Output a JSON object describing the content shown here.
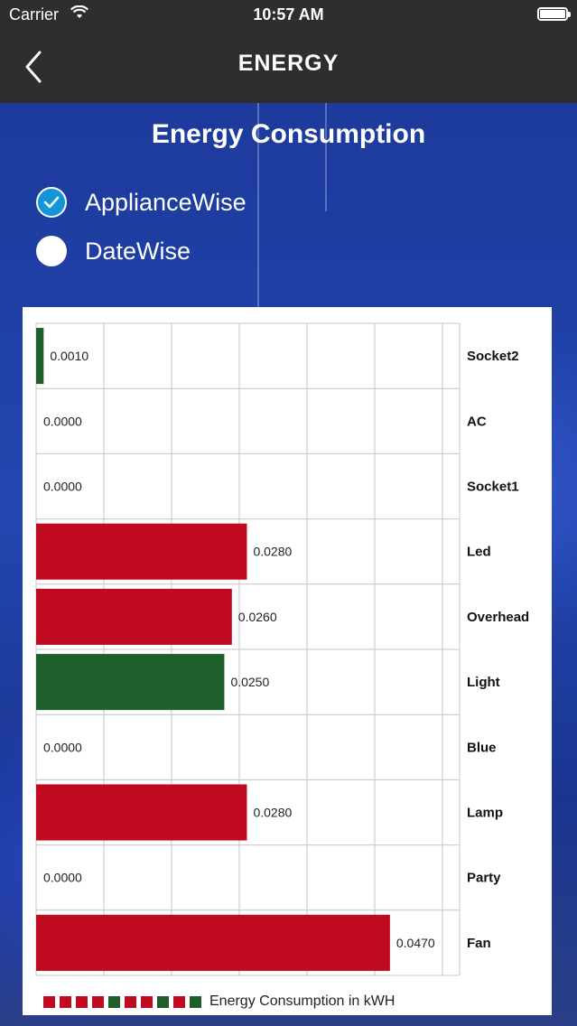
{
  "status_bar": {
    "carrier": "Carrier",
    "time": "10:57 AM"
  },
  "nav": {
    "title": "ENERGY",
    "back_icon": "chevron-left-icon"
  },
  "page_title": "Energy Consumption",
  "options": [
    {
      "label": "ApplianceWise",
      "selected": true
    },
    {
      "label": "DateWise",
      "selected": false
    }
  ],
  "colors": {
    "red": "#c00a1f",
    "green": "#1d5e2a",
    "checked": "#1296d8"
  },
  "chart_data": {
    "type": "bar",
    "orientation": "horizontal",
    "categories": [
      "Socket2",
      "AC",
      "Socket1",
      "Led",
      "Overhead",
      "Light",
      "Blue",
      "Lamp",
      "Party",
      "Fan"
    ],
    "values": [
      0.001,
      0,
      0,
      0.028,
      0.026,
      0.025,
      0,
      0.028,
      0,
      0.047
    ],
    "value_labels": [
      "0.0010",
      "0.0000",
      "0.0000",
      "0.0280",
      "0.0260",
      "0.0250",
      "0.0000",
      "0.0280",
      "0.0000",
      "0.0470"
    ],
    "bar_colors": [
      "green",
      "red",
      "red",
      "red",
      "red",
      "green",
      "red",
      "red",
      "red",
      "red"
    ],
    "xlim": [
      0,
      0.05625
    ],
    "grid": true,
    "legend": {
      "label": "Energy Consumption in kWH",
      "swatches": [
        "red",
        "red",
        "red",
        "red",
        "green",
        "red",
        "red",
        "green",
        "red",
        "green"
      ],
      "placement": "bottom-left"
    }
  }
}
